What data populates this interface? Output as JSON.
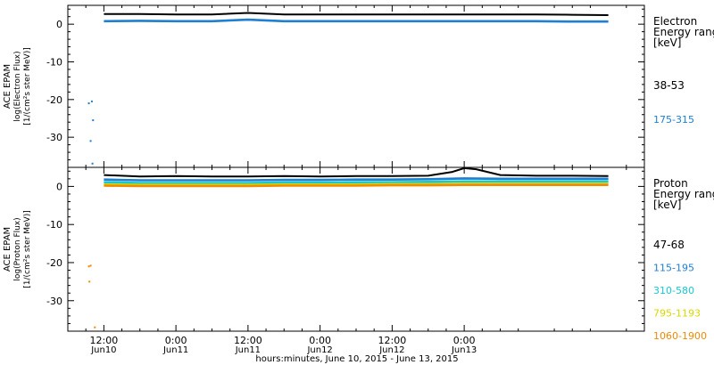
{
  "chart_data": [
    {
      "type": "line",
      "ylabel_lines": [
        "ACE EPAM",
        "log(Electron Flux)",
        "[1/(cm²s ster MeV)]"
      ],
      "legend_title_lines": [
        "Electron",
        "Energy range",
        "[keV]"
      ],
      "ylim": [
        -38,
        5
      ],
      "yticks": [
        0,
        -10,
        -20,
        -30
      ],
      "xlim_hours": [
        0,
        96
      ],
      "series": [
        {
          "name": "38-53",
          "color": "#000000",
          "x_hours": [
            6,
            12,
            18,
            24,
            30,
            36,
            42,
            48,
            54,
            60,
            66,
            72,
            78,
            84,
            90
          ],
          "values": [
            2.7,
            2.7,
            2.6,
            2.6,
            3.0,
            2.6,
            2.6,
            2.6,
            2.6,
            2.6,
            2.6,
            2.6,
            2.6,
            2.5,
            2.4
          ]
        },
        {
          "name": "175-315",
          "color": "#1f7fd0",
          "x_hours": [
            6,
            12,
            18,
            24,
            30,
            36,
            42,
            48,
            54,
            60,
            66,
            72,
            78,
            84,
            90
          ],
          "values": [
            0.8,
            0.9,
            0.8,
            0.8,
            1.2,
            0.8,
            0.8,
            0.8,
            0.8,
            0.8,
            0.8,
            0.8,
            0.8,
            0.7,
            0.7
          ],
          "outliers": [
            [
              3.5,
              -21
            ],
            [
              4.0,
              -20.5
            ],
            [
              4.2,
              -25.5
            ],
            [
              3.8,
              -31
            ],
            [
              4.1,
              -37
            ]
          ]
        }
      ]
    },
    {
      "type": "line",
      "ylabel_lines": [
        "ACE EPAM",
        "log(Proton Flux)",
        "[1/(cm²s ster MeV)]"
      ],
      "legend_title_lines": [
        "Proton",
        "Energy range",
        "[keV]"
      ],
      "ylim": [
        -38,
        5
      ],
      "yticks": [
        0,
        -10,
        -20,
        -30
      ],
      "xlim_hours": [
        0,
        96
      ],
      "series": [
        {
          "name": "47-68",
          "color": "#000000",
          "x_hours": [
            6,
            12,
            18,
            24,
            30,
            36,
            42,
            48,
            54,
            60,
            64,
            66,
            68,
            72,
            78,
            84,
            90
          ],
          "values": [
            3.0,
            2.6,
            2.7,
            2.6,
            2.6,
            2.7,
            2.6,
            2.7,
            2.7,
            2.8,
            3.8,
            4.8,
            4.5,
            3.0,
            2.8,
            2.8,
            2.7
          ]
        },
        {
          "name": "115-195",
          "color": "#1f7fd0",
          "x_hours": [
            6,
            12,
            18,
            24,
            30,
            36,
            42,
            48,
            54,
            60,
            66,
            72,
            78,
            84,
            90
          ],
          "values": [
            1.8,
            1.6,
            1.6,
            1.6,
            1.6,
            1.7,
            1.7,
            1.8,
            1.8,
            1.9,
            2.1,
            2.0,
            2.0,
            2.0,
            2.0
          ]
        },
        {
          "name": "310-580",
          "color": "#17c9cf",
          "x_hours": [
            6,
            12,
            18,
            24,
            30,
            36,
            42,
            48,
            54,
            60,
            66,
            72,
            78,
            84,
            90
          ],
          "values": [
            1.1,
            0.9,
            0.9,
            0.9,
            0.9,
            1.0,
            1.0,
            1.1,
            1.1,
            1.2,
            1.3,
            1.3,
            1.3,
            1.3,
            1.3
          ]
        },
        {
          "name": "795-1193",
          "color": "#d8d800",
          "x_hours": [
            6,
            12,
            18,
            24,
            30,
            36,
            42,
            48,
            54,
            60,
            66,
            72,
            78,
            84,
            90
          ],
          "values": [
            0.5,
            0.4,
            0.4,
            0.4,
            0.4,
            0.5,
            0.5,
            0.5,
            0.6,
            0.6,
            0.7,
            0.7,
            0.7,
            0.7,
            0.7
          ]
        },
        {
          "name": "1060-1900",
          "color": "#f08a00",
          "x_hours": [
            6,
            12,
            18,
            24,
            30,
            36,
            42,
            48,
            54,
            60,
            66,
            72,
            78,
            84,
            90
          ],
          "values": [
            0.2,
            0.1,
            0.1,
            0.1,
            0.1,
            0.2,
            0.2,
            0.2,
            0.3,
            0.3,
            0.4,
            0.4,
            0.4,
            0.4,
            0.4
          ],
          "outliers": [
            [
              3.5,
              -21
            ],
            [
              3.8,
              -20.8
            ],
            [
              3.6,
              -25
            ],
            [
              4.5,
              -37
            ]
          ]
        }
      ]
    }
  ],
  "x_axis": {
    "major_ticks": [
      {
        "hour": 6,
        "time": "12:00",
        "date": "Jun10"
      },
      {
        "hour": 18,
        "time": "0:00",
        "date": "Jun11"
      },
      {
        "hour": 30,
        "time": "12:00",
        "date": "Jun11"
      },
      {
        "hour": 42,
        "time": "0:00",
        "date": "Jun12"
      },
      {
        "hour": 54,
        "time": "12:00",
        "date": "Jun12"
      },
      {
        "hour": 66,
        "time": "0:00",
        "date": "Jun13"
      }
    ],
    "xlabel": "hours:minutes, June 10, 2015 - June 13, 2015"
  }
}
